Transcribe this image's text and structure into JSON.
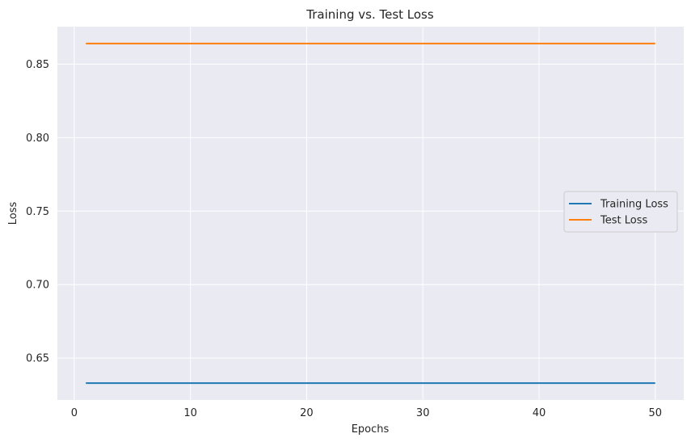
{
  "chart_data": {
    "type": "line",
    "title": "Training vs. Test Loss",
    "xlabel": "Epochs",
    "ylabel": "Loss",
    "xlim": [
      -1.45,
      52.45
    ],
    "ylim": [
      0.6215,
      0.8755
    ],
    "xticks": [
      0,
      10,
      20,
      30,
      40,
      50
    ],
    "yticks": [
      0.65,
      0.7,
      0.75,
      0.8,
      0.85
    ],
    "ytick_labels": [
      "0.65",
      "0.70",
      "0.75",
      "0.80",
      "0.85"
    ],
    "grid": true,
    "legend_position": "center-right",
    "background_color": "#eaeaf2",
    "series": [
      {
        "name": "Training Loss",
        "color": "#1f77b4",
        "x": [
          1,
          50
        ],
        "y": [
          0.633,
          0.633
        ]
      },
      {
        "name": "Test Loss",
        "color": "#ff7f0e",
        "x": [
          1,
          50
        ],
        "y": [
          0.864,
          0.864
        ]
      }
    ]
  }
}
